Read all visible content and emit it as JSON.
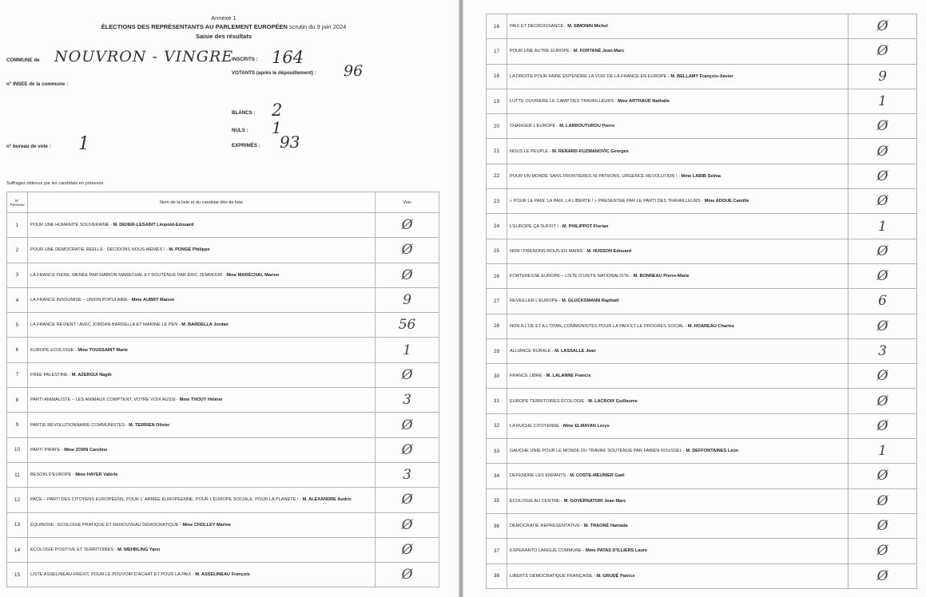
{
  "header": {
    "annex": "Annexe 1",
    "title": "ÉLECTIONS DES REPRÉSENTANTS AU PARLEMENT EUROPÉEN",
    "date": "scrutin du 9 juin 2024",
    "subtitle": "Saisie des résultats"
  },
  "fields": {
    "commune_label": "COMMUNE de",
    "commune_value": "NOUVRON - VINGRE",
    "insee_label": "n° INSEE de la commune :",
    "bureau_label": "n° bureau de vote :",
    "bureau_value": "1",
    "inscrits_label": "INSCRITS :",
    "inscrits_value": "164",
    "votants_label": "VOTANTS (après le dépouillement) :",
    "votants_value": "96",
    "blancs_label": "BLANCS :",
    "blancs_value": "2",
    "nuls_label": "NULS :",
    "nuls_value": "1",
    "exprimes_label": "EXPRIMÉS :",
    "exprimes_value": "93"
  },
  "table_caption": "Suffrages obtenus par les candidats en présence",
  "table_headers": {
    "num": "N° Panneau",
    "name": "Nom de la liste et du candidat tête de liste",
    "votes": "Voix"
  },
  "rows": [
    {
      "num": "1",
      "list": "POUR UNE HUMANITE SOUVERAINE - ",
      "candidate": "M. DEHER-LESAINT Léopold-Edouard",
      "votes": "Ø"
    },
    {
      "num": "2",
      "list": "POUR UNE DEMOCRATIE REELLE : DECIDONS NOUS-MEMES ! - ",
      "candidate": "M. PONGE Philippe",
      "votes": "Ø"
    },
    {
      "num": "3",
      "list": "LA FRANCE FIERE, MENEE PAR MARION MARECHAL ET SOUTENUE PAR ÉRIC ZEMMOUR - ",
      "candidate": "Mme MARÉCHAL Marion",
      "votes": "Ø"
    },
    {
      "num": "4",
      "list": "LA FRANCE INSOUMISE – UNION POPULAIRE - ",
      "candidate": "Mme AUBRY Manon",
      "votes": "9"
    },
    {
      "num": "5",
      "list": "LA FRANCE REVIENT ! AVEC JORDAN BARDELLA ET MARINE LE PEN - ",
      "candidate": "M. BARDELLA Jordan",
      "votes": "56"
    },
    {
      "num": "6",
      "list": "EUROPE ECOLOGIE - ",
      "candidate": "Mme TOUSSAINT Marie",
      "votes": "1"
    },
    {
      "num": "7",
      "list": "FREE PALESTINE - ",
      "candidate": "M. AZERGUI Nagib",
      "votes": "Ø"
    },
    {
      "num": "8",
      "list": "PARTI ANIMALISTE – LES ANIMAUX COMPTENT, VOTRE VOIX AUSSI - ",
      "candidate": "Mme THOUY Hélène",
      "votes": "3"
    },
    {
      "num": "9",
      "list": "PARTIE REVOLUTIONNAIRE COMMUNISTES - ",
      "candidate": "M. TERRIEN Olivier",
      "votes": "Ø"
    },
    {
      "num": "10",
      "list": "PARTI PIRATE - ",
      "candidate": "Mme ZORN Caroline",
      "votes": "Ø"
    },
    {
      "num": "11",
      "list": "BESOIN D'EUROPE - ",
      "candidate": "Mme HAYER Valérie",
      "votes": "3"
    },
    {
      "num": "12",
      "list": "PACE – PARTI DES CITOYENS EUROPEENS, POUR L' ARMEE EUROPEENNE, POUR L'EUROPE SOCIALE, POUR LA PLANETE ! - ",
      "candidate": "M. ALEXANDRE Audric",
      "votes": "Ø"
    },
    {
      "num": "13",
      "list": "ÉQUINOXE : ÉCOLOGIE PRATIQUE ET RENOUVEAU DÉMOCRATIQUE - ",
      "candidate": "Mme CHOLLEY Marine",
      "votes": "Ø"
    },
    {
      "num": "14",
      "list": "ECOLOGIE POSITIVE ET TERRITOIRES - ",
      "candidate": "M. WEHRLING Yann",
      "votes": "Ø"
    },
    {
      "num": "15",
      "list": "LISTE ASSELINEAU-FREXIT, POUR LE POUVOIR D'ACHAT ET POUR LA PAIX - ",
      "candidate": "M. ASSELINEAU François",
      "votes": "Ø"
    },
    {
      "num": "16",
      "list": "PAIX ET DECROISSANCE - ",
      "candidate": "M. SIMONIN Michel",
      "votes": "Ø"
    },
    {
      "num": "17",
      "list": "POUR UNE AUTRE EUROPE - ",
      "candidate": "M. FORTANÉ Jean-Marc",
      "votes": "Ø"
    },
    {
      "num": "18",
      "list": "LA DROITE POUR FAIRE ENTENDRE LA VOIX DE LA FRANCE EN EUROPE - ",
      "candidate": "M. BELLAMY François-Xavier",
      "votes": "9"
    },
    {
      "num": "19",
      "list": "LUTTE OUVRIERE LE CAMP DES TRAVAILLEURS - ",
      "candidate": "Mme ARTHAUD Nathalie",
      "votes": "1"
    },
    {
      "num": "20",
      "list": "CHANGER L'EUROPE - ",
      "candidate": "M. LARROUTUROU Pierre",
      "votes": "Ø"
    },
    {
      "num": "21",
      "list": "NOUS LE PEUPLE - ",
      "candidate": "M. RENARD-KUZMANOVIC Georges",
      "votes": "Ø"
    },
    {
      "num": "22",
      "list": "POUR UN MONDE SANS FRONTIERES NI PATRONS, URGENCE REVOLUTION ! - ",
      "candidate": "Mme LABIB Selma",
      "votes": "Ø"
    },
    {
      "num": "23",
      "list": "« POUR LE PAIN, LA PAIX, LA LIBERTE ! » PRESENTEE PAR LE PARTI DES TRAVAILLEURS - ",
      "candidate": "Mme ADOUE Camille",
      "votes": "Ø"
    },
    {
      "num": "24",
      "list": "L'EUROPE ÇA SUFFIT ! - ",
      "candidate": "M. PHILIPPOT Florian",
      "votes": "1"
    },
    {
      "num": "25",
      "list": "NON ! PRENONS-NOUS EN MAINS - ",
      "candidate": "M. HUSSON Edouard",
      "votes": "Ø"
    },
    {
      "num": "26",
      "list": "FORTERESSE EUROPE – LISTE D'UNITE NATIONALISTE - ",
      "candidate": "M. BONNEAU Pierre-Marie",
      "votes": "Ø"
    },
    {
      "num": "27",
      "list": "REVEILLER L'EUROPE - ",
      "candidate": "M. GLUCKSMANN Raphaël",
      "votes": "6"
    },
    {
      "num": "28",
      "list": "NON A L'UE ET A L'OTAN, COMMUNISTES POUR LA PAIX ET LE PROGRES SOCIAL - ",
      "candidate": "M. HOAREAU Charles",
      "votes": "Ø"
    },
    {
      "num": "29",
      "list": "ALLIANCE RURALE - ",
      "candidate": "M. LASSALLE Jean",
      "votes": "3"
    },
    {
      "num": "30",
      "list": "FRANCE LIBRE - ",
      "candidate": "M. LALANNE Francis",
      "votes": "Ø"
    },
    {
      "num": "31",
      "list": "EUROPE TERRITOIRES ÉCOLOGIE - ",
      "candidate": "M. LACROIX Guillaume",
      "votes": "Ø"
    },
    {
      "num": "32",
      "list": "LA RUCHE CITOYENNE - ",
      "candidate": "Mme ELMAYAN Lorys",
      "votes": "Ø"
    },
    {
      "num": "33",
      "list": "GAUCHE UNIE POUR LE MONDE DU TRAVAIL SOUTENUE PAR FABIEN ROUSSEL - ",
      "candidate": "M. DEFFONTAINES Léon",
      "votes": "1"
    },
    {
      "num": "34",
      "list": "DEFENDRE LES ENFANTS - ",
      "candidate": "M. COSTE-MEUNIER Gaël",
      "votes": "Ø"
    },
    {
      "num": "35",
      "list": "ÉCOLOGIE AU CENTRE - ",
      "candidate": "M. GOVERNATORI Jean Marc",
      "votes": "Ø"
    },
    {
      "num": "36",
      "list": "DEMOCRATIE REPRESENTATIVE - ",
      "candidate": "M. TRAORÉ Hamada",
      "votes": "Ø"
    },
    {
      "num": "37",
      "list": "ESPERANTO LANGUE COMMUNE - ",
      "candidate": "Mme PATAS D'ILLIERS Laure",
      "votes": "Ø"
    },
    {
      "num": "38",
      "list": "LIBERTÉ DÉMOCRATIQUE FRANÇAISE - ",
      "candidate": "M. GRUDÉ Patrice",
      "votes": "Ø"
    }
  ]
}
